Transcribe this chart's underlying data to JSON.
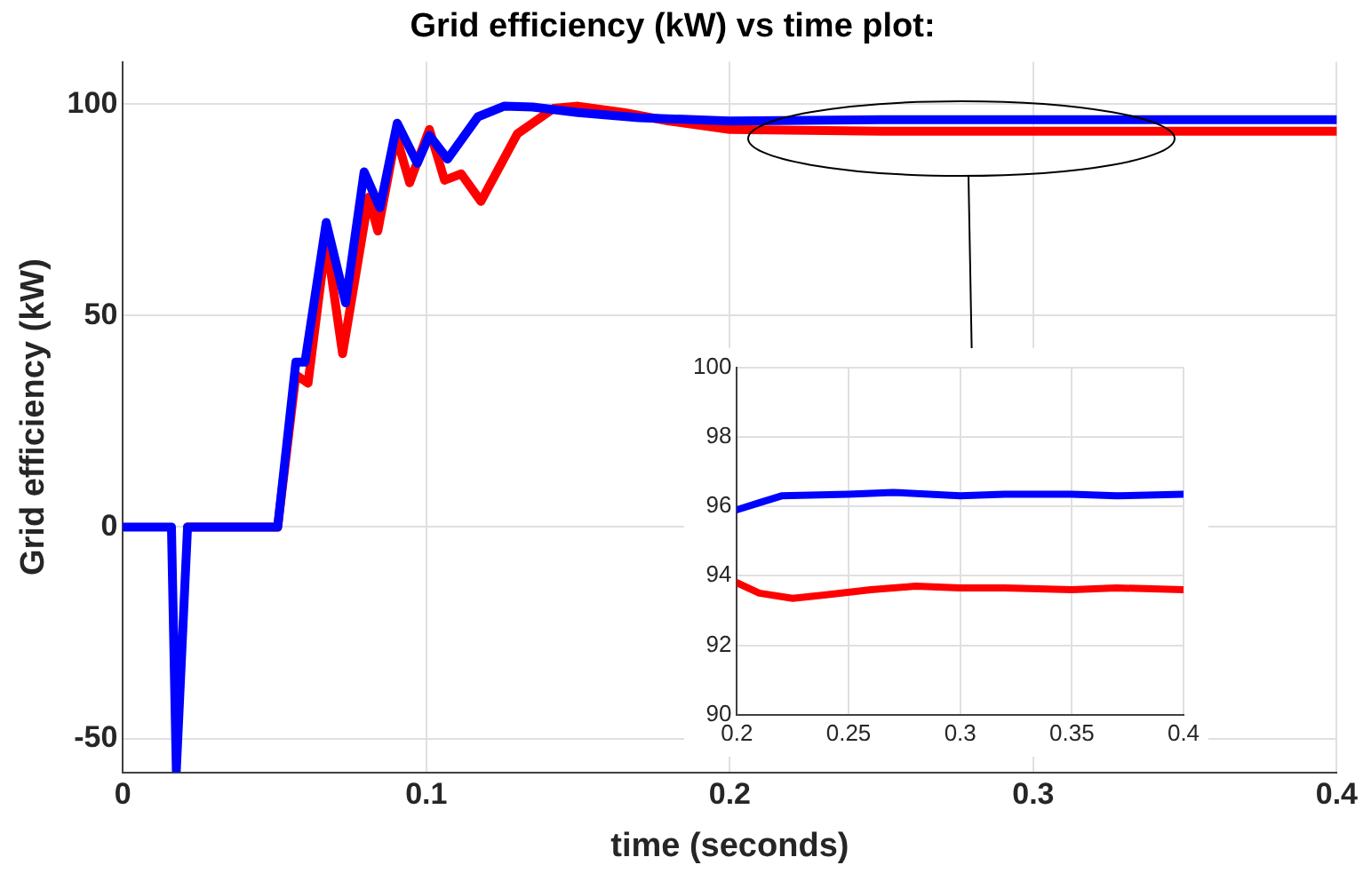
{
  "chart_data": [
    {
      "type": "line",
      "title": "Grid efficiency (kW) vs time plot:",
      "xlabel": "time (seconds)",
      "ylabel": "Grid efficiency (kW)",
      "xlim": [
        0,
        0.4
      ],
      "xticks": [
        0,
        0.1,
        0.2,
        0.3,
        0.4
      ],
      "ylim": [
        -58,
        110
      ],
      "yticks": [
        -50,
        0,
        50,
        100
      ],
      "grid": true,
      "series": [
        {
          "color": "#ff0000",
          "x": [
            0.0213,
            0.051,
            0.057,
            0.061,
            0.067,
            0.0724,
            0.081,
            0.084,
            0.09,
            0.0945,
            0.101,
            0.106,
            0.1115,
            0.118,
            0.13,
            0.142,
            0.15,
            0.165,
            0.18,
            0.2,
            0.25,
            0.3,
            0.35,
            0.4
          ],
          "values": [
            0,
            0,
            36,
            34,
            68,
            41,
            78,
            70,
            92.6,
            81.4,
            94,
            82,
            83.5,
            77,
            93,
            99,
            99.5,
            98,
            96,
            94,
            93.6,
            93.6,
            93.6,
            93.6
          ]
        },
        {
          "color": "#0000ff",
          "x": [
            0,
            0.016,
            0.0176,
            0.0213,
            0.051,
            0.057,
            0.06,
            0.067,
            0.0734,
            0.0795,
            0.0847,
            0.0904,
            0.097,
            0.101,
            0.107,
            0.117,
            0.1256,
            0.135,
            0.15,
            0.17,
            0.2,
            0.25,
            0.3,
            0.35,
            0.4
          ],
          "values": [
            0,
            0,
            -57.6,
            0,
            0,
            39,
            39,
            72,
            53,
            84,
            75.5,
            95.5,
            86,
            92.6,
            87,
            97,
            99.5,
            99.3,
            98,
            96.8,
            96,
            96.3,
            96.3,
            96.3,
            96.3
          ]
        }
      ]
    },
    {
      "type": "line",
      "xlim": [
        0.2,
        0.4
      ],
      "xticks": [
        0.2,
        0.25,
        0.3,
        0.35,
        0.4
      ],
      "ylim": [
        90,
        100
      ],
      "yticks": [
        90,
        92,
        94,
        96,
        98,
        100
      ],
      "grid": true,
      "series": [
        {
          "color": "#ff0000",
          "x": [
            0.2,
            0.21,
            0.225,
            0.24,
            0.26,
            0.28,
            0.3,
            0.32,
            0.35,
            0.37,
            0.4
          ],
          "values": [
            93.8,
            93.5,
            93.35,
            93.45,
            93.6,
            93.7,
            93.65,
            93.65,
            93.6,
            93.65,
            93.6
          ]
        },
        {
          "color": "#0000ff",
          "x": [
            0.2,
            0.21,
            0.22,
            0.25,
            0.27,
            0.3,
            0.32,
            0.35,
            0.37,
            0.4
          ],
          "values": [
            95.9,
            96.1,
            96.3,
            96.35,
            96.4,
            96.3,
            96.35,
            96.35,
            96.3,
            96.35
          ]
        }
      ]
    }
  ]
}
